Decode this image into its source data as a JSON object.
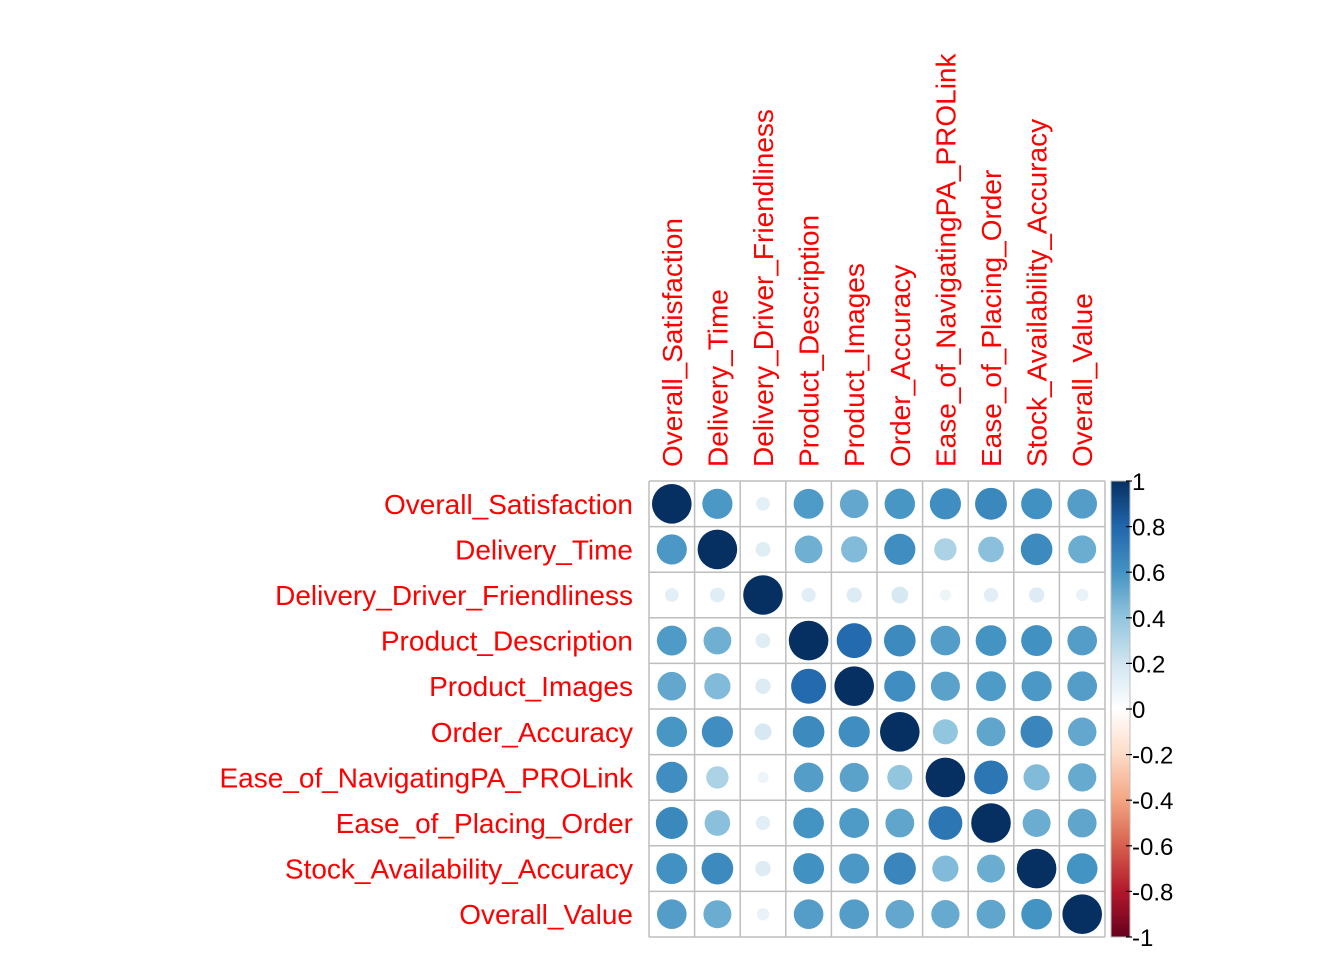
{
  "chart_data": {
    "type": "heatmap",
    "style": "corrplot-circle",
    "title": "",
    "variables": [
      "Overall_Satisfaction",
      "Delivery_Time",
      "Delivery_Driver_Friendliness",
      "Product_Description",
      "Product_Images",
      "Order_Accuracy",
      "Ease_of_NavigatingPA_PROLink",
      "Ease_of_Placing_Order",
      "Stock_Availability_Accuracy",
      "Overall_Value"
    ],
    "matrix": [
      [
        1.0,
        0.58,
        0.12,
        0.57,
        0.52,
        0.59,
        0.62,
        0.65,
        0.61,
        0.56
      ],
      [
        0.58,
        1.0,
        0.14,
        0.49,
        0.44,
        0.62,
        0.32,
        0.42,
        0.64,
        0.5
      ],
      [
        0.12,
        0.14,
        1.0,
        0.13,
        0.15,
        0.18,
        0.08,
        0.13,
        0.15,
        0.1
      ],
      [
        0.57,
        0.49,
        0.14,
        1.0,
        0.78,
        0.64,
        0.56,
        0.6,
        0.61,
        0.56
      ],
      [
        0.52,
        0.44,
        0.15,
        0.78,
        1.0,
        0.62,
        0.54,
        0.57,
        0.58,
        0.56
      ],
      [
        0.59,
        0.62,
        0.18,
        0.64,
        0.62,
        1.0,
        0.4,
        0.53,
        0.66,
        0.52
      ],
      [
        0.62,
        0.32,
        0.08,
        0.56,
        0.54,
        0.4,
        1.0,
        0.73,
        0.44,
        0.51
      ],
      [
        0.65,
        0.42,
        0.13,
        0.6,
        0.57,
        0.53,
        0.73,
        1.0,
        0.5,
        0.53
      ],
      [
        0.61,
        0.64,
        0.15,
        0.61,
        0.58,
        0.66,
        0.44,
        0.5,
        1.0,
        0.6
      ],
      [
        0.56,
        0.5,
        0.1,
        0.56,
        0.56,
        0.52,
        0.51,
        0.53,
        0.6,
        1.0
      ]
    ],
    "colorbar": {
      "range": [
        -1,
        1
      ],
      "tick_labels": [
        "1",
        "0.8",
        "0.6",
        "0.4",
        "0.2",
        "0",
        "-0.2",
        "-0.4",
        "-0.6",
        "-0.8",
        "-1"
      ],
      "tick_values": [
        1,
        0.8,
        0.6,
        0.4,
        0.2,
        0,
        -0.2,
        -0.4,
        -0.6,
        -0.8,
        -1
      ],
      "colors": [
        "#67001F",
        "#B2182B",
        "#D6604D",
        "#F4A582",
        "#FDDBC7",
        "#FFFFFF",
        "#D1E5F0",
        "#92C5DE",
        "#4393C3",
        "#2166AC",
        "#053061"
      ]
    },
    "label_color": "#FF0000",
    "grid": true
  }
}
